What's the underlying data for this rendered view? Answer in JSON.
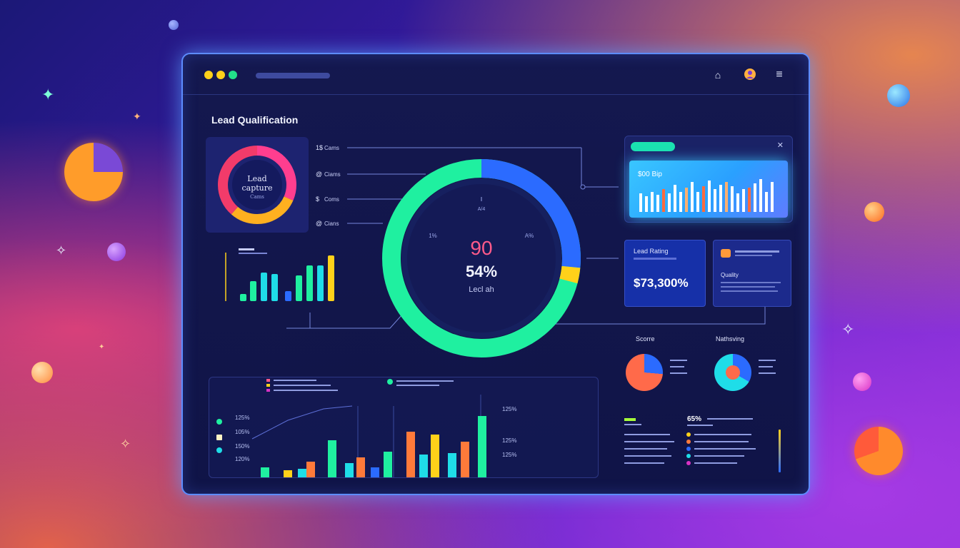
{
  "window": {
    "dot_colors": [
      "#ffd11a",
      "#ffd11a",
      "#22e08a"
    ]
  },
  "dashboard": {
    "title": "Lead Qualification"
  },
  "lead_capture": {
    "line1": "Lead",
    "line2": "capture",
    "line3": "Cams",
    "ring_colors": [
      "#ff3e8f",
      "#ffb020",
      "#ff7a2a",
      "#f23b6a"
    ]
  },
  "legend_items": [
    {
      "icon": "1$",
      "label": "Cams"
    },
    {
      "icon": "@",
      "label": "Ciams"
    },
    {
      "icon": "$",
      "label": "Coms"
    },
    {
      "icon": "@",
      "label": "Cians"
    }
  ],
  "center_gauge": {
    "value1": "90",
    "value2": "54%",
    "caption": "Lecl ah",
    "tick_left": "1%",
    "tick_right": "A%",
    "tick_top": "A/4",
    "colors": [
      "#1ff0a0",
      "#2b6bff",
      "#ffd11a"
    ]
  },
  "top_bar_panel": {
    "label": "$00 Bip",
    "icon": "close-icon"
  },
  "card_lead_rating": {
    "title": "Lead Rating",
    "value": "$73,300%"
  },
  "card_quality": {
    "title": "Quality"
  },
  "small_pies": {
    "left_title": "Scorre",
    "right_title": "Nathsving"
  },
  "bottom_right": {
    "value": "65%"
  },
  "bottom_axis": [
    "125%",
    "105%",
    "150%",
    "120%"
  ],
  "bottom_axis_right": [
    "125%",
    "125%",
    "125%"
  ]
}
